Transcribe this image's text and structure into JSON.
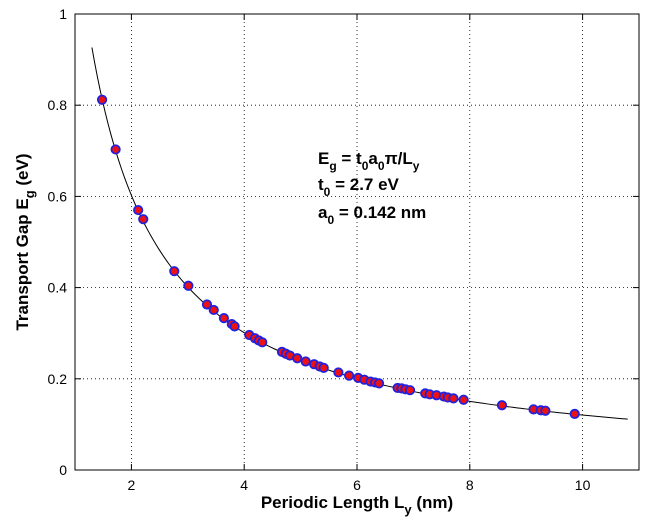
{
  "chart_data": {
    "type": "scatter",
    "xlabel": {
      "text": "Periodic Length L",
      "sub": "y",
      "tail": " (nm)"
    },
    "ylabel": {
      "text": "Transport Gap E",
      "sub": "g",
      "tail": " (eV)"
    },
    "xlim": [
      1,
      11
    ],
    "ylim": [
      0,
      1
    ],
    "xticks": [
      "2",
      "4",
      "6",
      "8",
      "10"
    ],
    "yticks": [
      "0",
      "0.2",
      "0.4",
      "0.6",
      "0.8",
      "1"
    ],
    "grid": true,
    "annotations": {
      "eq_parts": [
        "E",
        "g",
        " = t",
        "0",
        "a",
        "0",
        "π/L",
        "y"
      ],
      "t0_parts": [
        "t",
        "0",
        " = 2.7 eV"
      ],
      "a0_parts": [
        "a",
        "0",
        " = 0.142 nm"
      ]
    },
    "curve": {
      "formula": "Eg = t0*a0*pi/Ly",
      "t0": 2.7,
      "a0": 0.142,
      "x_start": 1.3,
      "x_end": 10.8,
      "color": "#000000"
    },
    "marker": {
      "fill": "#ee1111",
      "edge": "#2222dd"
    },
    "points": {
      "x": [
        1.48,
        1.72,
        2.12,
        2.21,
        2.76,
        3.01,
        3.34,
        3.46,
        3.64,
        3.78,
        3.83,
        4.09,
        4.19,
        4.26,
        4.32,
        4.67,
        4.74,
        4.81,
        4.94,
        5.09,
        5.24,
        5.34,
        5.41,
        5.67,
        5.86,
        6.02,
        6.13,
        6.24,
        6.32,
        6.39,
        6.72,
        6.79,
        6.86,
        6.94,
        7.21,
        7.29,
        7.41,
        7.54,
        7.61,
        7.71,
        7.89,
        8.57,
        9.13,
        9.26,
        9.34,
        9.86
      ],
      "y": [
        0.812,
        0.703,
        0.57,
        0.55,
        0.436,
        0.404,
        0.363,
        0.351,
        0.333,
        0.32,
        0.315,
        0.296,
        0.289,
        0.284,
        0.28,
        0.259,
        0.255,
        0.251,
        0.245,
        0.238,
        0.232,
        0.227,
        0.224,
        0.214,
        0.207,
        0.202,
        0.198,
        0.194,
        0.192,
        0.19,
        0.18,
        0.179,
        0.177,
        0.175,
        0.168,
        0.166,
        0.164,
        0.161,
        0.159,
        0.157,
        0.154,
        0.142,
        0.133,
        0.131,
        0.13,
        0.123
      ]
    }
  }
}
